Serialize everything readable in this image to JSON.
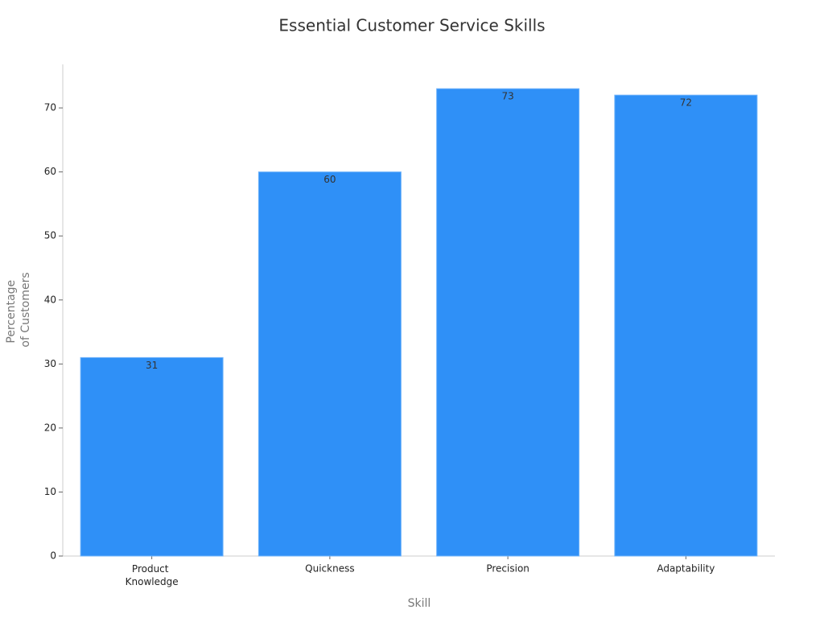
{
  "chart_data": {
    "type": "bar",
    "title": "Essential Customer Service Skills",
    "x_label": "Skill",
    "y_label": "Percentage of Customers",
    "categories": [
      "Product Knowledge",
      "Quickness",
      "Precision",
      "Adaptability"
    ],
    "values": [
      31,
      60,
      73,
      72
    ],
    "color": "#2f90f7",
    "ylim": [
      0,
      76.8
    ],
    "yticks": [
      0,
      10,
      20,
      30,
      40,
      50,
      60,
      70
    ],
    "grid": false
  }
}
